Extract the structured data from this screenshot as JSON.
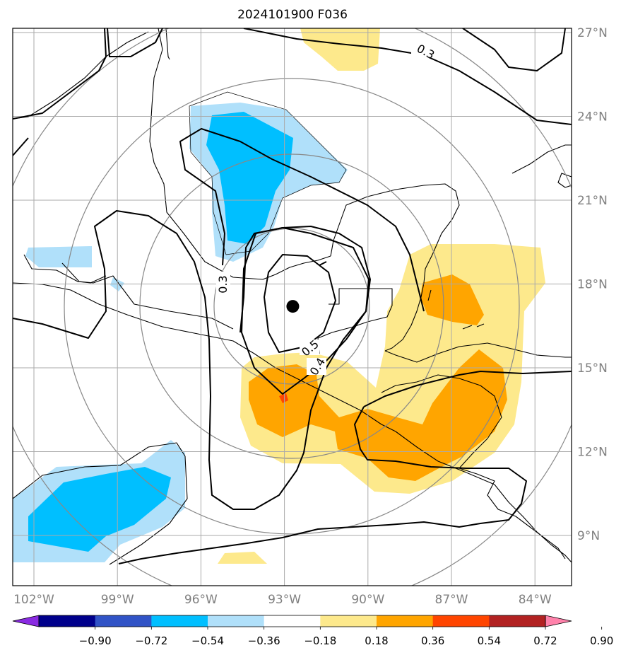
{
  "title": "2024101900 F036",
  "map": {
    "lon_ticks": [
      {
        "value": -102,
        "label": "102°W"
      },
      {
        "value": -99,
        "label": "99°W"
      },
      {
        "value": -96,
        "label": "96°W"
      },
      {
        "value": -93,
        "label": "93°W"
      },
      {
        "value": -90,
        "label": "90°W"
      },
      {
        "value": -87,
        "label": "87°W"
      },
      {
        "value": -84,
        "label": "84°W"
      }
    ],
    "lat_ticks": [
      {
        "value": 27,
        "label": "27°N"
      },
      {
        "value": 24,
        "label": "24°N"
      },
      {
        "value": 21,
        "label": "21°N"
      },
      {
        "value": 18,
        "label": "18°N"
      },
      {
        "value": 15,
        "label": "15°N"
      },
      {
        "value": 12,
        "label": "12°N"
      },
      {
        "value": 9,
        "label": "9°N"
      }
    ],
    "contour_labels": [
      {
        "text": "0.3"
      },
      {
        "text": "0.3"
      },
      {
        "text": "0.5"
      },
      {
        "text": "0.4"
      }
    ],
    "storm_center": {
      "lon": -92.7,
      "lat": 17.2
    }
  },
  "colorbar": {
    "tick_labels": [
      "−0.90",
      "−0.72",
      "−0.54",
      "−0.36",
      "−0.18",
      "0.18",
      "0.36",
      "0.54",
      "0.72",
      "0.90"
    ],
    "colors": [
      "#8a2be2",
      "#00008b",
      "#3153c6",
      "#00bfff",
      "#b0e0fa",
      "#ffffff",
      "#fde98c",
      "#ffa500",
      "#ff4500",
      "#b22222",
      "#ff82ab"
    ]
  }
}
